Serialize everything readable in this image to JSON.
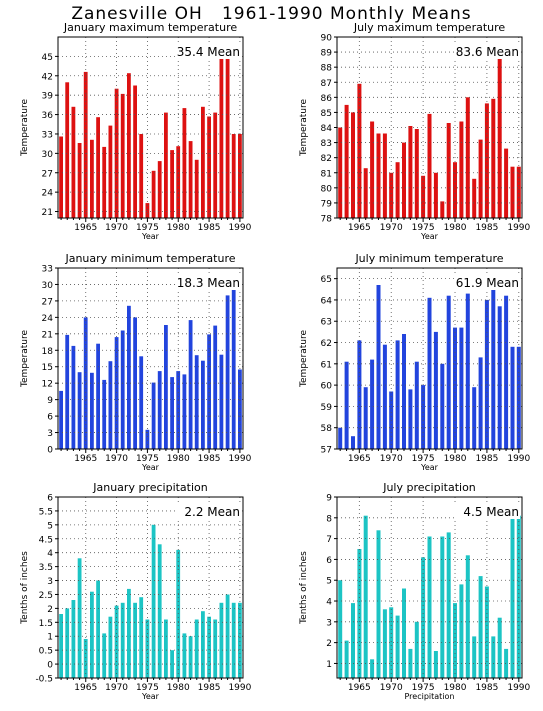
{
  "title": "Zanesville OH   1961-1990 Monthly Means",
  "colors": {
    "red": "#dd1111",
    "blue": "#2244dd",
    "cyan": "#1cc4c4",
    "grid": "#555555"
  },
  "chart_data": [
    {
      "id": "jan-max",
      "type": "bar",
      "color": "red",
      "title": "January maximum temperature",
      "xlabel": "Year",
      "ylabel": "Temperature",
      "mean_label": "35.4 Mean",
      "ylim": [
        20,
        48
      ],
      "yticks": [
        21,
        24,
        27,
        30,
        33,
        36,
        39,
        42,
        45
      ],
      "xlim": [
        1960.5,
        1990.5
      ],
      "xticks": [
        1965,
        1970,
        1975,
        1980,
        1985,
        1990
      ],
      "x": [
        1961,
        1962,
        1963,
        1964,
        1965,
        1966,
        1967,
        1968,
        1969,
        1970,
        1971,
        1972,
        1973,
        1974,
        1975,
        1976,
        1977,
        1978,
        1979,
        1980,
        1981,
        1982,
        1983,
        1984,
        1985,
        1986,
        1987,
        1988,
        1989,
        1990
      ],
      "values": [
        32.6,
        41.0,
        37.2,
        31.6,
        42.6,
        32.1,
        35.6,
        31.0,
        34.3,
        40.0,
        39.2,
        42.4,
        40.5,
        33.0,
        22.3,
        27.3,
        28.8,
        36.3,
        30.5,
        31.1,
        37.0,
        31.9,
        29.0,
        37.2,
        35.7,
        36.3,
        45.4,
        46.0,
        33.0,
        33.0
      ]
    },
    {
      "id": "jul-max",
      "type": "bar",
      "color": "red",
      "title": "July maximum temperature",
      "xlabel": "Year",
      "ylabel": "Temperature",
      "mean_label": "83.6 Mean",
      "ylim": [
        78,
        90
      ],
      "yticks": [
        78,
        79,
        80,
        81,
        82,
        83,
        84,
        85,
        86,
        87,
        88,
        89,
        90
      ],
      "xlim": [
        1961.5,
        1990.5
      ],
      "xticks": [
        1965,
        1970,
        1975,
        1980,
        1985,
        1990
      ],
      "x": [
        1962,
        1963,
        1964,
        1965,
        1966,
        1967,
        1968,
        1969,
        1970,
        1971,
        1972,
        1973,
        1974,
        1975,
        1976,
        1977,
        1978,
        1979,
        1980,
        1981,
        1982,
        1983,
        1984,
        1985,
        1986,
        1987,
        1988,
        1989,
        1990
      ],
      "values": [
        84.0,
        85.5,
        85.0,
        86.9,
        81.3,
        84.4,
        83.6,
        83.6,
        81.0,
        81.7,
        83.0,
        84.1,
        83.9,
        80.8,
        84.9,
        81.0,
        79.1,
        84.3,
        81.7,
        84.4,
        86.0,
        80.6,
        83.2,
        85.6,
        85.9,
        88.6,
        82.6,
        81.4,
        81.4
      ]
    },
    {
      "id": "jan-min",
      "type": "bar",
      "color": "blue",
      "title": "January minimum temperature",
      "xlabel": "Year",
      "ylabel": "Temperature",
      "mean_label": "18.3 Mean",
      "ylim": [
        0,
        33
      ],
      "yticks": [
        0,
        3,
        6,
        9,
        12,
        15,
        18,
        21,
        24,
        27,
        30,
        33
      ],
      "xlim": [
        1960.5,
        1990.5
      ],
      "xticks": [
        1965,
        1970,
        1975,
        1980,
        1985,
        1990
      ],
      "x": [
        1961,
        1962,
        1963,
        1964,
        1965,
        1966,
        1967,
        1968,
        1969,
        1970,
        1971,
        1972,
        1973,
        1974,
        1975,
        1976,
        1977,
        1978,
        1979,
        1980,
        1981,
        1982,
        1983,
        1984,
        1985,
        1986,
        1987,
        1988,
        1989,
        1990
      ],
      "values": [
        10.6,
        20.8,
        18.8,
        14.0,
        24.0,
        13.9,
        19.2,
        12.6,
        16.0,
        20.4,
        21.6,
        26.1,
        24.0,
        16.9,
        3.5,
        12.1,
        14.2,
        22.6,
        13.1,
        14.2,
        13.6,
        23.5,
        17.1,
        16.1,
        20.9,
        22.5,
        17.2,
        28.0,
        29.6,
        14.5
      ]
    },
    {
      "id": "jul-min",
      "type": "bar",
      "color": "blue",
      "title": "July minimum temperature",
      "xlabel": "Year",
      "ylabel": "Temperature",
      "mean_label": "61.9 Mean",
      "ylim": [
        57,
        65.5
      ],
      "yticks": [
        57,
        58,
        59,
        60,
        61,
        62,
        63,
        64,
        65
      ],
      "xlim": [
        1961.5,
        1990.5
      ],
      "xticks": [
        1965,
        1970,
        1975,
        1980,
        1985,
        1990
      ],
      "x": [
        1962,
        1963,
        1964,
        1965,
        1966,
        1967,
        1968,
        1969,
        1970,
        1971,
        1972,
        1973,
        1974,
        1975,
        1976,
        1977,
        1978,
        1979,
        1980,
        1981,
        1982,
        1983,
        1984,
        1985,
        1986,
        1987,
        1988,
        1989,
        1990
      ],
      "values": [
        58.0,
        61.1,
        57.6,
        62.1,
        59.9,
        61.2,
        64.7,
        61.9,
        59.7,
        62.1,
        62.4,
        59.8,
        61.1,
        60.0,
        64.1,
        62.5,
        61.0,
        64.2,
        62.7,
        62.7,
        64.3,
        59.9,
        61.3,
        64.0,
        64.6,
        63.7,
        64.2,
        61.8,
        61.8
      ]
    },
    {
      "id": "jan-precip",
      "type": "bar",
      "color": "cyan",
      "title": "January precipitation",
      "xlabel": "Year",
      "ylabel": "Tenths of inches",
      "mean_label": "2.2 Mean",
      "ylim": [
        -0.5,
        6
      ],
      "yticks": [
        -0.5,
        0,
        0.5,
        1,
        1.5,
        2,
        2.5,
        3,
        3.5,
        4,
        4.5,
        5,
        5.5,
        6
      ],
      "xlim": [
        1960.5,
        1990.5
      ],
      "xticks": [
        1965,
        1970,
        1975,
        1980,
        1985,
        1990
      ],
      "x": [
        1961,
        1962,
        1963,
        1964,
        1965,
        1966,
        1967,
        1968,
        1969,
        1970,
        1971,
        1972,
        1973,
        1974,
        1975,
        1976,
        1977,
        1978,
        1979,
        1980,
        1981,
        1982,
        1983,
        1984,
        1985,
        1986,
        1987,
        1988,
        1989,
        1990
      ],
      "values": [
        1.8,
        2.0,
        2.3,
        3.8,
        0.9,
        2.6,
        3.0,
        1.1,
        1.7,
        2.1,
        2.2,
        2.7,
        2.2,
        2.4,
        1.6,
        5.0,
        4.3,
        1.6,
        0.5,
        4.1,
        1.1,
        1.0,
        1.6,
        1.9,
        1.7,
        1.6,
        2.2,
        2.5,
        2.2,
        2.2
      ]
    },
    {
      "id": "jul-precip",
      "type": "bar",
      "color": "cyan",
      "title": "July precipitation",
      "xlabel": "Precipitation",
      "ylabel": "Tenths of inches",
      "mean_label": "4.5 Mean",
      "ylim": [
        0.3,
        9
      ],
      "yticks": [
        1,
        2,
        3,
        4,
        5,
        6,
        7,
        8,
        9
      ],
      "xlim": [
        1961.5,
        1990.5
      ],
      "xticks": [
        1965,
        1970,
        1975,
        1980,
        1985,
        1990
      ],
      "x": [
        1962,
        1963,
        1964,
        1965,
        1966,
        1967,
        1968,
        1969,
        1970,
        1971,
        1972,
        1973,
        1974,
        1975,
        1976,
        1977,
        1978,
        1979,
        1980,
        1981,
        1982,
        1983,
        1984,
        1985,
        1986,
        1987,
        1988,
        1989,
        1990
      ],
      "values": [
        5.0,
        2.1,
        3.9,
        6.5,
        8.1,
        1.2,
        7.4,
        3.6,
        3.7,
        3.3,
        4.6,
        1.7,
        3.0,
        6.1,
        7.1,
        1.6,
        7.1,
        7.3,
        3.9,
        4.8,
        6.2,
        2.3,
        5.2,
        4.7,
        2.3,
        3.2,
        1.7,
        8.1,
        8.1
      ]
    }
  ]
}
